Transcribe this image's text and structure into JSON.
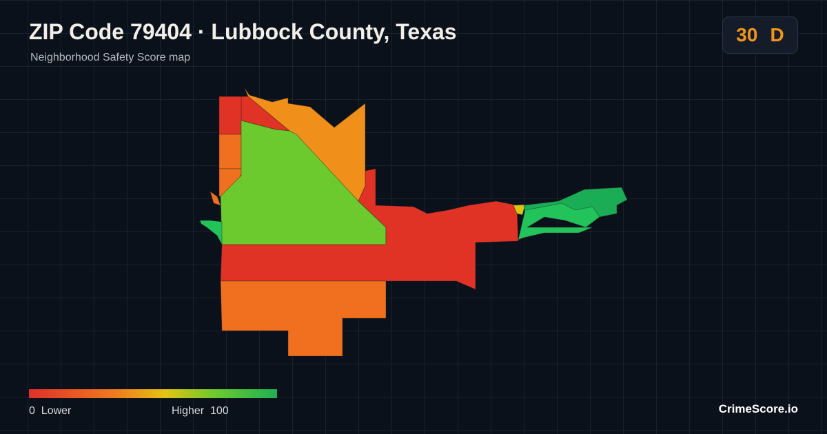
{
  "header": {
    "title": "ZIP Code 79404 · Lubbock County, Texas",
    "subtitle": "Neighborhood Safety Score map"
  },
  "score": {
    "value": 30,
    "grade": "D"
  },
  "legend": {
    "min": 0,
    "min_label": "Lower",
    "max_label": "Higher",
    "max": 100
  },
  "brand": "CrimeScore.io"
}
